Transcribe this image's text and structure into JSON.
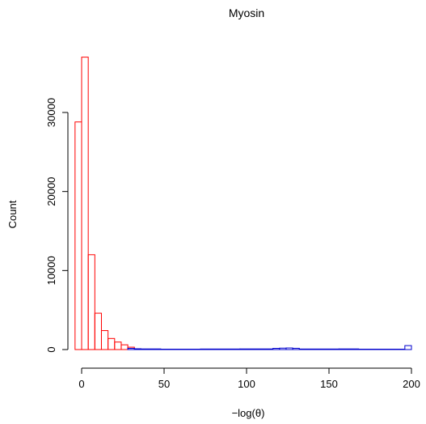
{
  "chart_data": {
    "type": "bar",
    "title": "Myosin",
    "xlabel": "−log(θ)",
    "ylabel": "Count",
    "xlim": [
      -4,
      200
    ],
    "ylim": [
      0,
      37000
    ],
    "x_ticks": [
      "0",
      "50",
      "100",
      "150",
      "200"
    ],
    "x_tick_values": [
      0,
      50,
      100,
      150,
      200
    ],
    "y_ticks": [
      "0",
      "10000",
      "20000",
      "30000"
    ],
    "y_tick_values": [
      0,
      10000,
      20000,
      30000
    ],
    "series": [
      {
        "color": "#ff0000",
        "bins": [
          {
            "start": -4,
            "end": 0,
            "count": 28800
          },
          {
            "start": 0,
            "end": 4,
            "count": 37000
          },
          {
            "start": 4,
            "end": 8,
            "count": 12000
          },
          {
            "start": 8,
            "end": 12,
            "count": 4600
          },
          {
            "start": 12,
            "end": 16,
            "count": 2400
          },
          {
            "start": 16,
            "end": 20,
            "count": 1400
          },
          {
            "start": 20,
            "end": 24,
            "count": 950
          },
          {
            "start": 24,
            "end": 28,
            "count": 600
          },
          {
            "start": 28,
            "end": 32,
            "count": 300
          },
          {
            "start": 32,
            "end": 36,
            "count": 100
          }
        ]
      },
      {
        "color": "#0000cc",
        "bins": [
          {
            "start": 28,
            "end": 32,
            "count": 150
          },
          {
            "start": 32,
            "end": 36,
            "count": 100
          },
          {
            "start": 36,
            "end": 48,
            "count": 80
          },
          {
            "start": 48,
            "end": 72,
            "count": 50
          },
          {
            "start": 72,
            "end": 96,
            "count": 70
          },
          {
            "start": 96,
            "end": 116,
            "count": 80
          },
          {
            "start": 116,
            "end": 120,
            "count": 150
          },
          {
            "start": 120,
            "end": 124,
            "count": 180
          },
          {
            "start": 124,
            "end": 128,
            "count": 200
          },
          {
            "start": 128,
            "end": 132,
            "count": 160
          },
          {
            "start": 132,
            "end": 156,
            "count": 70
          },
          {
            "start": 156,
            "end": 168,
            "count": 80
          },
          {
            "start": 168,
            "end": 196,
            "count": 50
          },
          {
            "start": 196,
            "end": 200,
            "count": 500
          }
        ]
      }
    ]
  }
}
